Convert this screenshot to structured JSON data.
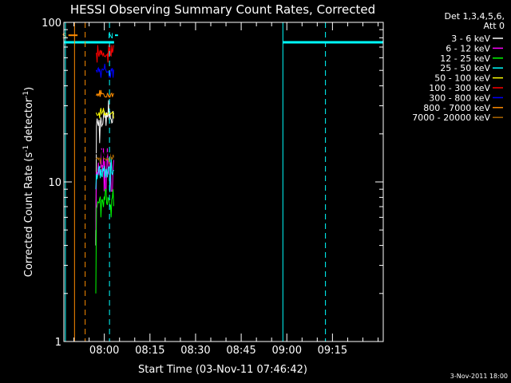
{
  "chart_data": {
    "type": "line",
    "title": "HESSI Observing Summary Count Rates, Corrected",
    "xlabel": "Start Time (03-Nov-11 07:46:42)",
    "ylabel_main": "Corrected Count Rate (s",
    "ylabel_sup1": "-1",
    "ylabel_mid": " detector",
    "ylabel_sup2": "-1",
    "ylabel_end": ")",
    "y_scale": "log",
    "ylim": [
      1,
      100
    ],
    "y_ticks": [
      {
        "value": 1,
        "label": "1"
      },
      {
        "value": 10,
        "label": "10"
      },
      {
        "value": 100,
        "label": "100"
      }
    ],
    "xlim_minutes": [
      0,
      105
    ],
    "x_ticks": [
      {
        "value": 13.3,
        "label": "08:00"
      },
      {
        "value": 28.3,
        "label": "08:15"
      },
      {
        "value": 43.3,
        "label": "08:30"
      },
      {
        "value": 58.3,
        "label": "08:45"
      },
      {
        "value": 73.3,
        "label": "09:00"
      },
      {
        "value": 88.3,
        "label": "09:15"
      }
    ],
    "legend_header": [
      "Det 1,3,4,5,6,",
      "Att 0"
    ],
    "series": [
      {
        "name": "3 - 6 keV",
        "color": "#ffffff",
        "level": 25,
        "lo": 4,
        "noise": 0.12
      },
      {
        "name": "6 - 12 keV",
        "color": "#ff00ff",
        "level": 12.5,
        "lo": 5,
        "noise": 0.12
      },
      {
        "name": "12 - 25 keV",
        "color": "#00ff00",
        "level": 7.5,
        "lo": 2,
        "noise": 0.08
      },
      {
        "name": "25 - 50 keV",
        "color": "#00ffff",
        "level": 11.5,
        "lo": 9,
        "noise": 0.1
      },
      {
        "name": "50 - 100 keV",
        "color": "#ffff00",
        "level": 27,
        "lo": 27,
        "noise": 0.03
      },
      {
        "name": "100 - 300 keV",
        "color": "#ff0000",
        "level": 64,
        "lo": 64,
        "noise": 0.05
      },
      {
        "name": "300 - 800 keV",
        "color": "#0000ff",
        "level": 50,
        "lo": 50,
        "noise": 0.04
      },
      {
        "name": "800 - 7000 keV",
        "color": "#ff8c00",
        "level": 35,
        "lo": 35,
        "noise": 0.03
      },
      {
        "name": "7000 - 20000 keV",
        "color": "#aa6600",
        "level": 14,
        "lo": 14,
        "noise": 0.03
      }
    ],
    "data_interval_minutes": [
      10.5,
      16.5
    ],
    "extra_black_level": 15,
    "saa_bars": [
      {
        "start": 0,
        "end": 16.5,
        "value": 75
      },
      {
        "start": 72,
        "end": 105,
        "value": 75
      }
    ],
    "flags": [
      {
        "name": "S",
        "color": "#ff8c00",
        "start": 1.5,
        "end": 4.5,
        "value": 83
      },
      {
        "name": "N",
        "color": "#00ffff",
        "start": 16.8,
        "end": 17.8,
        "value": 83
      }
    ],
    "vlines": [
      {
        "minute": 0.5,
        "color": "#00ffff",
        "dash": false
      },
      {
        "minute": 3.5,
        "color": "#ff8c00",
        "dash": false
      },
      {
        "minute": 7,
        "color": "#ff8c00",
        "dash": true
      },
      {
        "minute": 15,
        "color": "#00ffff",
        "dash": true
      },
      {
        "minute": 72,
        "color": "#00ffff",
        "dash": false
      },
      {
        "minute": 86,
        "color": "#00ffff",
        "dash": true
      }
    ],
    "footer": "3-Nov-2011 18:00"
  }
}
